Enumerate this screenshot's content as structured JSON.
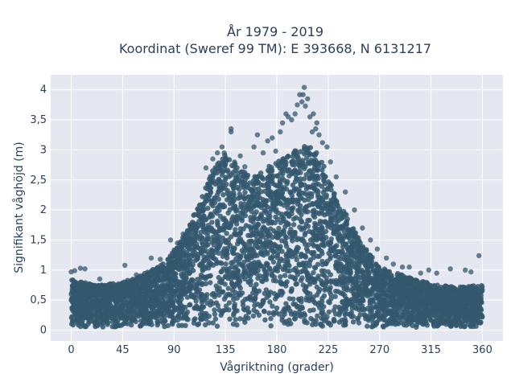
{
  "chart_data": {
    "type": "scatter",
    "title_lines": [
      "År 1979 - 2019",
      "Koordinat (Sweref 99 TM): E 393668, N 6131217"
    ],
    "xlabel": "Vågriktning (grader)",
    "ylabel": "Signifikant våghöjd (m)",
    "xlim": [
      -18,
      378
    ],
    "ylim": [
      -0.18,
      4.25
    ],
    "x_ticks": [
      0,
      45,
      90,
      135,
      180,
      225,
      270,
      315,
      360
    ],
    "x_tick_labels": [
      "0",
      "45",
      "90",
      "135",
      "180",
      "225",
      "270",
      "315",
      "360"
    ],
    "y_ticks": [
      0,
      0.5,
      1,
      1.5,
      2,
      2.5,
      3,
      3.5,
      4
    ],
    "y_tick_labels": [
      "0",
      "0,5",
      "1",
      "1,5",
      "2",
      "2,5",
      "3",
      "3,5",
      "4"
    ],
    "grid": true,
    "legend": "none",
    "marker_color": "#34586F",
    "plot_background": "#E5E8F0",
    "envelope": {
      "direction": [
        0,
        20,
        45,
        60,
        80,
        95,
        105,
        115,
        125,
        135,
        145,
        160,
        175,
        190,
        200,
        210,
        220,
        230,
        240,
        250,
        260,
        270,
        285,
        300,
        320,
        340,
        360
      ],
      "max_height": [
        0.85,
        0.75,
        0.8,
        0.9,
        1.1,
        1.45,
        1.8,
        2.3,
        2.7,
        3.0,
        2.75,
        2.55,
        2.75,
        2.9,
        3.05,
        3.1,
        2.8,
        2.3,
        1.95,
        1.6,
        1.3,
        1.05,
        0.95,
        0.85,
        0.75,
        0.72,
        0.75
      ],
      "min_height": 0.05
    },
    "outliers": [
      {
        "x": 0,
        "y": 0.97
      },
      {
        "x": 3,
        "y": 0.99
      },
      {
        "x": 8,
        "y": 1.03
      },
      {
        "x": 12,
        "y": 1.02
      },
      {
        "x": 25,
        "y": 0.85
      },
      {
        "x": 47,
        "y": 1.08
      },
      {
        "x": 57,
        "y": 0.92
      },
      {
        "x": 70,
        "y": 1.2
      },
      {
        "x": 78,
        "y": 1.18
      },
      {
        "x": 87,
        "y": 1.5
      },
      {
        "x": 93,
        "y": 1.45
      },
      {
        "x": 98,
        "y": 1.6
      },
      {
        "x": 118,
        "y": 2.7
      },
      {
        "x": 124,
        "y": 2.85
      },
      {
        "x": 128,
        "y": 2.95
      },
      {
        "x": 132,
        "y": 3.05
      },
      {
        "x": 134,
        "y": 2.95
      },
      {
        "x": 140,
        "y": 3.3
      },
      {
        "x": 140,
        "y": 3.35
      },
      {
        "x": 148,
        "y": 2.9
      },
      {
        "x": 152,
        "y": 2.72
      },
      {
        "x": 160,
        "y": 3.05
      },
      {
        "x": 163,
        "y": 3.25
      },
      {
        "x": 168,
        "y": 2.95
      },
      {
        "x": 172,
        "y": 3.15
      },
      {
        "x": 176,
        "y": 3.2
      },
      {
        "x": 179,
        "y": 2.98
      },
      {
        "x": 183,
        "y": 3.3
      },
      {
        "x": 185,
        "y": 3.45
      },
      {
        "x": 188,
        "y": 3.6
      },
      {
        "x": 190,
        "y": 3.55
      },
      {
        "x": 193,
        "y": 3.5
      },
      {
        "x": 196,
        "y": 3.6
      },
      {
        "x": 198,
        "y": 3.75
      },
      {
        "x": 200,
        "y": 3.92
      },
      {
        "x": 202,
        "y": 3.8
      },
      {
        "x": 203,
        "y": 3.92
      },
      {
        "x": 204,
        "y": 4.04
      },
      {
        "x": 205,
        "y": 3.73
      },
      {
        "x": 207,
        "y": 3.85
      },
      {
        "x": 209,
        "y": 3.55
      },
      {
        "x": 211,
        "y": 3.3
      },
      {
        "x": 212,
        "y": 3.6
      },
      {
        "x": 214,
        "y": 3.35
      },
      {
        "x": 215,
        "y": 3.45
      },
      {
        "x": 217,
        "y": 3.25
      },
      {
        "x": 220,
        "y": 3.12
      },
      {
        "x": 224,
        "y": 3.05
      },
      {
        "x": 227,
        "y": 2.8
      },
      {
        "x": 232,
        "y": 2.55
      },
      {
        "x": 240,
        "y": 2.3
      },
      {
        "x": 248,
        "y": 2.0
      },
      {
        "x": 255,
        "y": 1.7
      },
      {
        "x": 262,
        "y": 1.5
      },
      {
        "x": 268,
        "y": 1.35
      },
      {
        "x": 276,
        "y": 1.2
      },
      {
        "x": 282,
        "y": 1.1
      },
      {
        "x": 290,
        "y": 1.05
      },
      {
        "x": 296,
        "y": 1.05
      },
      {
        "x": 306,
        "y": 0.95
      },
      {
        "x": 313,
        "y": 1.0
      },
      {
        "x": 320,
        "y": 0.95
      },
      {
        "x": 332,
        "y": 1.02
      },
      {
        "x": 345,
        "y": 1.0
      },
      {
        "x": 350,
        "y": 0.97
      },
      {
        "x": 357,
        "y": 1.24
      }
    ]
  }
}
